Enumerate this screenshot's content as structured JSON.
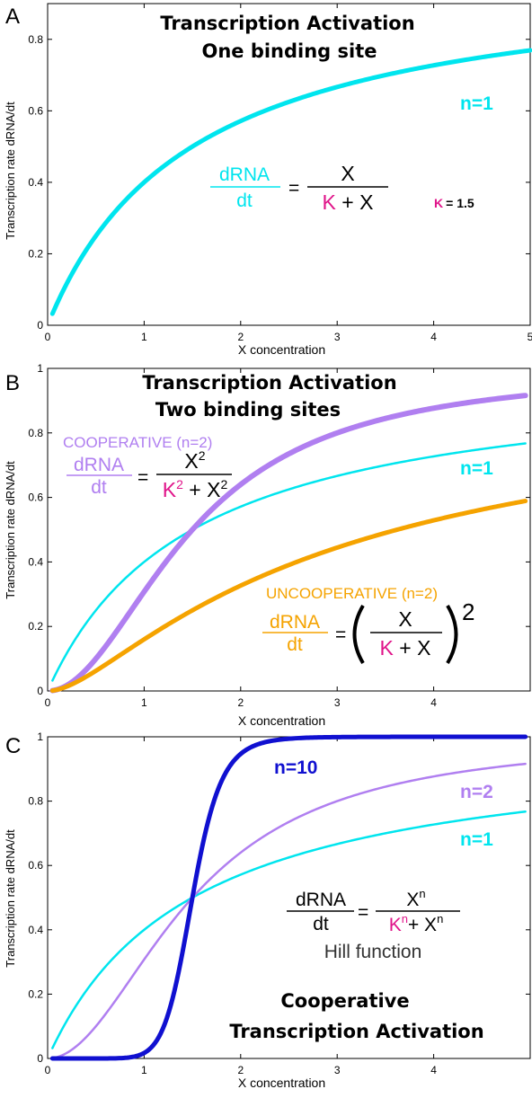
{
  "colors": {
    "n1": "#00e5ee",
    "coop": "#b07ff0",
    "uncoop": "#f5a300",
    "n10": "#1010d0",
    "k": "#e0158a",
    "axis": "#000000"
  },
  "chart_data": [
    {
      "panel": "A",
      "type": "line",
      "title": [
        "Transcription Activation",
        "One binding site"
      ],
      "xlabel": "X concentration",
      "ylabel": "Transcription rate dRNA/dt",
      "xlim": [
        0,
        5
      ],
      "ylim": [
        0,
        0.9
      ],
      "xticks": [
        "0",
        "1",
        "2",
        "3",
        "4",
        "5"
      ],
      "yticks": [
        "0",
        "0.2",
        "0.4",
        "0.6",
        "0.8"
      ],
      "K": 1.5,
      "series": [
        {
          "name": "n=1",
          "n": 1,
          "color": "#00e5ee",
          "width": 5
        }
      ],
      "x_start": 0.05,
      "x_end": 5,
      "equation": {
        "lhs_num": "dRNA",
        "lhs_den": "dt",
        "rhs_num": "X",
        "rhs_den_k": "K",
        "rhs_den_rest": " + X"
      },
      "k_label": "K",
      "k_value": "= 1.5"
    },
    {
      "panel": "B",
      "type": "line",
      "title": [
        "Transcription Activation",
        "Two binding sites"
      ],
      "xlabel": "X concentration",
      "ylabel": "Transcription rate dRNA/dt",
      "xlim": [
        0,
        5
      ],
      "ylim": [
        0,
        1
      ],
      "xticks": [
        "0",
        "1",
        "2",
        "3",
        "4"
      ],
      "yticks": [
        "0",
        "0.2",
        "0.4",
        "0.6",
        "0.8",
        "1"
      ],
      "K": 1.5,
      "series": [
        {
          "name": "n=1",
          "n": 1,
          "color": "#00e5ee",
          "width": 2.5
        },
        {
          "name": "COOPERATIVE (n=2)",
          "n": 2,
          "color": "#b07ff0",
          "width": 6
        },
        {
          "name": "UNCOOPERATIVE (n=2)",
          "n": "uncoop",
          "color": "#f5a300",
          "width": 5
        }
      ],
      "x_start": 0.05,
      "x_end": 4.95,
      "coop_eq": {
        "lhs_num": "dRNA",
        "lhs_den": "dt",
        "rhs_num": "X",
        "num_exp": "2",
        "rhs_den_k": "K",
        "den_k_exp": "2",
        "rhs_den_rest": " + X",
        "den_x_exp": "2"
      },
      "uncoop_eq": {
        "lhs_num": "dRNA",
        "lhs_den": "dt",
        "rhs_num": "X",
        "rhs_den_k": "K",
        "rhs_den_rest": " + X",
        "outer_exp": "2"
      }
    },
    {
      "panel": "C",
      "type": "line",
      "title": [
        "Cooperative",
        "Transcription Activation"
      ],
      "xlabel": "X concentration",
      "ylabel": "Transcription rate dRNA/dt",
      "xlim": [
        0,
        5
      ],
      "ylim": [
        0,
        1
      ],
      "xticks": [
        "0",
        "1",
        "2",
        "3",
        "4"
      ],
      "yticks": [
        "0",
        "0.2",
        "0.4",
        "0.6",
        "0.8",
        "1"
      ],
      "K": 1.5,
      "series": [
        {
          "name": "n=1",
          "n": 1,
          "color": "#00e5ee",
          "width": 2.5
        },
        {
          "name": "n=2",
          "n": 2,
          "color": "#b07ff0",
          "width": 2.5
        },
        {
          "name": "n=10",
          "n": 10,
          "color": "#1010d0",
          "width": 5
        }
      ],
      "x_start": 0.05,
      "x_end": 4.95,
      "equation": {
        "lhs_num": "dRNA",
        "lhs_den": "dt",
        "rhs_num": "X",
        "num_exp": "n",
        "rhs_den_k": "K",
        "den_k_exp": "n",
        "rhs_den_rest": "+ X",
        "den_x_exp": "n"
      },
      "equation_caption": "Hill function"
    }
  ]
}
